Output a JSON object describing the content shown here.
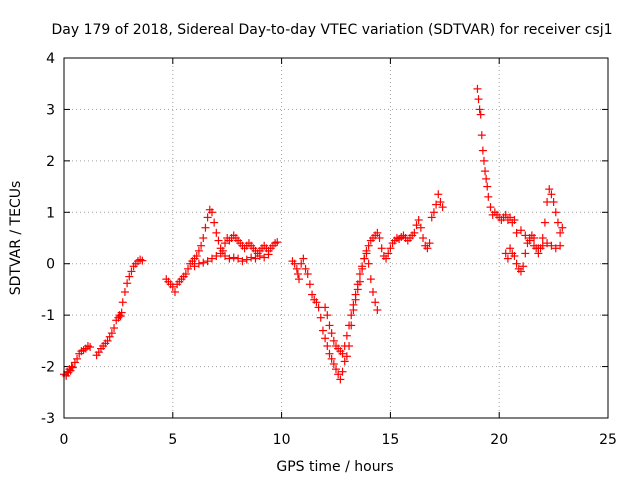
{
  "chart_data": {
    "type": "scatter",
    "title": "Day 179 of 2018, Sidereal Day-to-day VTEC variation (SDTVAR) for receiver csj1",
    "xlabel": "GPS time / hours",
    "ylabel": "SDTVAR / TECUs",
    "xlim": [
      0,
      25
    ],
    "ylim": [
      -3,
      4
    ],
    "xticks": [
      0,
      5,
      10,
      15,
      20,
      25
    ],
    "xtick_labels": [
      "0",
      "5",
      "10",
      "15",
      "20",
      "25"
    ],
    "yticks": [
      -3,
      -2,
      -1,
      0,
      1,
      2,
      3,
      4
    ],
    "ytick_labels": [
      "-3",
      "-2",
      "-1",
      "0",
      "1",
      "2",
      "3",
      "4"
    ],
    "grid": true,
    "marker": "+",
    "marker_color": "#ff0000",
    "series": [
      {
        "name": "SDTVAR",
        "x": [
          0.0,
          0.1,
          0.15,
          0.2,
          0.25,
          0.3,
          0.35,
          0.4,
          0.5,
          0.6,
          0.7,
          0.8,
          0.9,
          1.0,
          1.1,
          1.2,
          1.5,
          1.6,
          1.7,
          1.8,
          1.9,
          2.0,
          2.1,
          2.2,
          2.3,
          2.4,
          2.5,
          2.55,
          2.6,
          2.65,
          2.7,
          2.8,
          2.9,
          3.0,
          3.1,
          3.2,
          3.3,
          3.4,
          3.5,
          3.6,
          4.7,
          4.8,
          4.9,
          5.0,
          5.1,
          5.2,
          5.3,
          5.4,
          5.5,
          5.6,
          5.7,
          5.8,
          5.9,
          6.0,
          6.1,
          6.2,
          6.3,
          6.4,
          6.5,
          6.6,
          6.7,
          6.8,
          6.9,
          7.0,
          7.1,
          7.2,
          7.3,
          7.4,
          7.5,
          7.6,
          7.7,
          7.8,
          7.9,
          8.0,
          8.1,
          8.2,
          8.3,
          8.4,
          8.5,
          8.6,
          8.7,
          8.8,
          8.9,
          9.0,
          9.1,
          9.2,
          9.3,
          9.4,
          9.5,
          9.6,
          9.7,
          9.8,
          6.0,
          6.2,
          6.4,
          6.6,
          6.8,
          7.0,
          7.2,
          7.4,
          7.6,
          7.8,
          8.0,
          8.2,
          8.4,
          8.6,
          8.8,
          9.0,
          9.2,
          9.4,
          10.5,
          10.6,
          10.7,
          10.75,
          10.8,
          10.9,
          11.0,
          11.1,
          11.2,
          11.3,
          11.4,
          11.5,
          11.6,
          11.7,
          11.8,
          11.9,
          12.0,
          12.1,
          12.2,
          12.3,
          12.4,
          12.5,
          12.6,
          12.7,
          12.8,
          12.9,
          13.0,
          13.1,
          13.2,
          13.3,
          13.4,
          13.5,
          13.6,
          13.7,
          13.8,
          13.9,
          14.0,
          14.1,
          14.2,
          14.3,
          14.4,
          14.5,
          14.6,
          14.7,
          14.8,
          14.9,
          15.0,
          15.1,
          15.2,
          15.3,
          15.4,
          15.5,
          12.0,
          12.1,
          12.2,
          12.3,
          12.4,
          12.5,
          12.6,
          12.7,
          12.8,
          12.9,
          13.0,
          13.1,
          13.2,
          13.3,
          13.4,
          13.5,
          13.6,
          13.7,
          13.8,
          13.9,
          14.0,
          14.1,
          14.2,
          14.3,
          14.4,
          15.6,
          15.7,
          15.8,
          15.9,
          16.0,
          16.1,
          16.2,
          16.3,
          16.4,
          16.5,
          16.6,
          16.7,
          16.8,
          16.9,
          17.0,
          17.1,
          17.2,
          17.3,
          17.4,
          19.0,
          19.05,
          19.1,
          19.15,
          19.2,
          19.25,
          19.3,
          19.35,
          19.4,
          19.45,
          19.5,
          19.6,
          19.7,
          19.8,
          19.9,
          20.0,
          20.1,
          20.2,
          20.3,
          20.4,
          20.5,
          20.6,
          20.7,
          20.3,
          20.4,
          20.5,
          20.6,
          20.7,
          20.8,
          20.9,
          21.0,
          21.1,
          21.2,
          21.3,
          21.4,
          21.5,
          21.6,
          21.7,
          21.8,
          21.9,
          22.0,
          22.1,
          22.2,
          22.3,
          22.4,
          22.5,
          22.6,
          22.7,
          22.8,
          22.9,
          20.8,
          21.0,
          21.2,
          21.4,
          21.6,
          21.8,
          22.0,
          22.2,
          22.4,
          22.6,
          22.8
        ],
        "y": [
          -2.15,
          -2.18,
          -2.1,
          -2.12,
          -2.05,
          -2.08,
          -2.0,
          -2.02,
          -1.92,
          -1.85,
          -1.75,
          -1.7,
          -1.68,
          -1.65,
          -1.6,
          -1.62,
          -1.78,
          -1.72,
          -1.65,
          -1.6,
          -1.55,
          -1.5,
          -1.42,
          -1.35,
          -1.25,
          -1.1,
          -1.05,
          -1.0,
          -1.02,
          -0.95,
          -0.75,
          -0.55,
          -0.38,
          -0.25,
          -0.15,
          -0.05,
          0.0,
          0.05,
          0.08,
          0.06,
          -0.3,
          -0.35,
          -0.4,
          -0.45,
          -0.55,
          -0.4,
          -0.35,
          -0.3,
          -0.25,
          -0.2,
          -0.1,
          0.0,
          0.05,
          0.1,
          0.15,
          0.25,
          0.35,
          0.5,
          0.7,
          0.9,
          1.05,
          1.0,
          0.8,
          0.6,
          0.45,
          0.3,
          0.25,
          0.4,
          0.5,
          0.45,
          0.5,
          0.55,
          0.5,
          0.45,
          0.4,
          0.35,
          0.3,
          0.35,
          0.4,
          0.35,
          0.3,
          0.25,
          0.2,
          0.25,
          0.3,
          0.35,
          0.3,
          0.25,
          0.3,
          0.35,
          0.4,
          0.42,
          -0.05,
          0.0,
          0.02,
          0.05,
          0.1,
          0.15,
          0.2,
          0.15,
          0.1,
          0.12,
          0.1,
          0.05,
          0.08,
          0.12,
          0.1,
          0.15,
          0.12,
          0.18,
          0.05,
          0.0,
          -0.1,
          -0.2,
          -0.3,
          0.0,
          0.1,
          -0.1,
          -0.2,
          -0.4,
          -0.6,
          -0.7,
          -0.75,
          -0.85,
          -1.05,
          -1.3,
          -1.45,
          -1.6,
          -1.75,
          -1.85,
          -1.95,
          -2.05,
          -2.15,
          -2.25,
          -2.1,
          -1.9,
          -1.8,
          -1.6,
          -1.2,
          -0.9,
          -0.7,
          -0.5,
          -0.35,
          -0.1,
          0.1,
          0.25,
          0.35,
          0.45,
          0.5,
          0.55,
          0.6,
          0.5,
          0.3,
          0.15,
          0.1,
          0.2,
          0.3,
          0.4,
          0.45,
          0.5,
          0.48,
          0.52,
          -0.85,
          -1.0,
          -1.2,
          -1.35,
          -1.5,
          -1.6,
          -1.65,
          -1.7,
          -1.75,
          -1.6,
          -1.4,
          -1.2,
          -1.0,
          -0.8,
          -0.6,
          -0.4,
          -0.2,
          -0.05,
          0.1,
          0.2,
          0.0,
          -0.3,
          -0.55,
          -0.75,
          -0.9,
          0.55,
          0.5,
          0.45,
          0.5,
          0.55,
          0.6,
          0.75,
          0.85,
          0.7,
          0.5,
          0.35,
          0.3,
          0.4,
          0.9,
          1.0,
          1.15,
          1.35,
          1.2,
          1.1,
          3.4,
          3.2,
          3.0,
          2.9,
          2.5,
          2.2,
          2.0,
          1.8,
          1.65,
          1.5,
          1.3,
          1.1,
          0.95,
          1.0,
          0.95,
          0.9,
          0.85,
          0.9,
          0.95,
          0.85,
          0.9,
          0.8,
          0.85,
          0.2,
          0.1,
          0.3,
          0.2,
          0.15,
          0.0,
          -0.1,
          -0.15,
          -0.05,
          0.2,
          0.4,
          0.5,
          0.55,
          0.5,
          0.3,
          0.2,
          0.3,
          0.5,
          0.8,
          1.2,
          1.45,
          1.35,
          1.2,
          1.0,
          0.8,
          0.6,
          0.7,
          0.6,
          0.65,
          0.55,
          0.45,
          0.35,
          0.3,
          0.35,
          0.4,
          0.35,
          0.3,
          0.35
        ]
      }
    ]
  }
}
